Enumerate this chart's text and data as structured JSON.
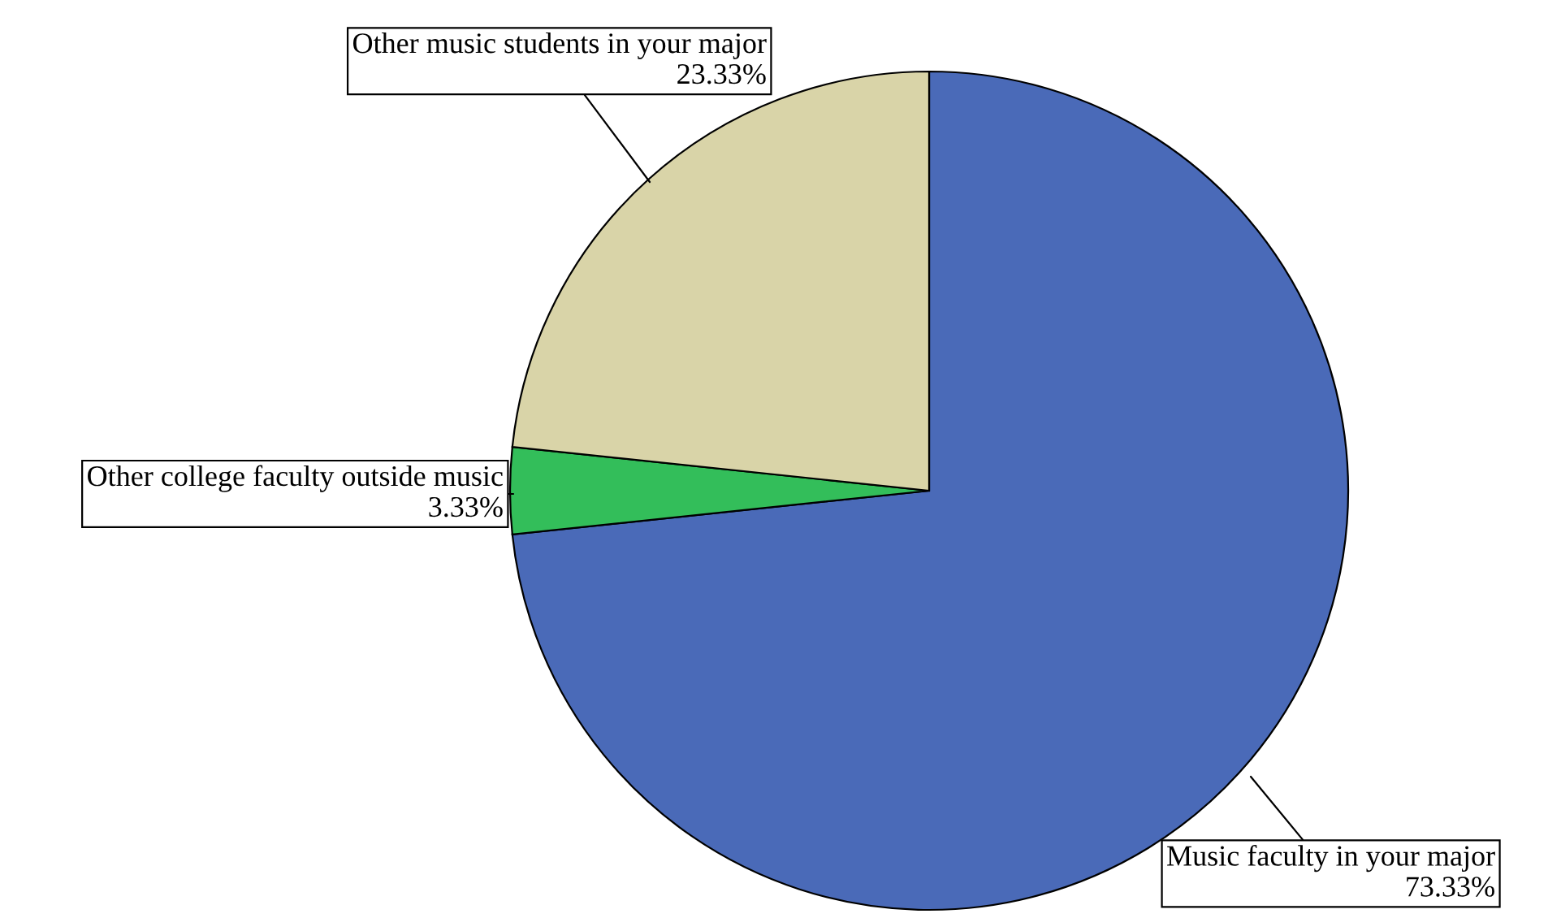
{
  "chart_data": {
    "type": "pie",
    "categories": [
      "Music faculty in your major",
      "Other college faculty outside music",
      "Other music students in your major"
    ],
    "values": [
      73.33,
      3.33,
      23.33
    ],
    "colors": [
      "#4a6ab8",
      "#33be5a",
      "#d9d4a8"
    ],
    "value_labels": [
      "73.33%",
      "3.33%",
      "23.33%"
    ]
  }
}
